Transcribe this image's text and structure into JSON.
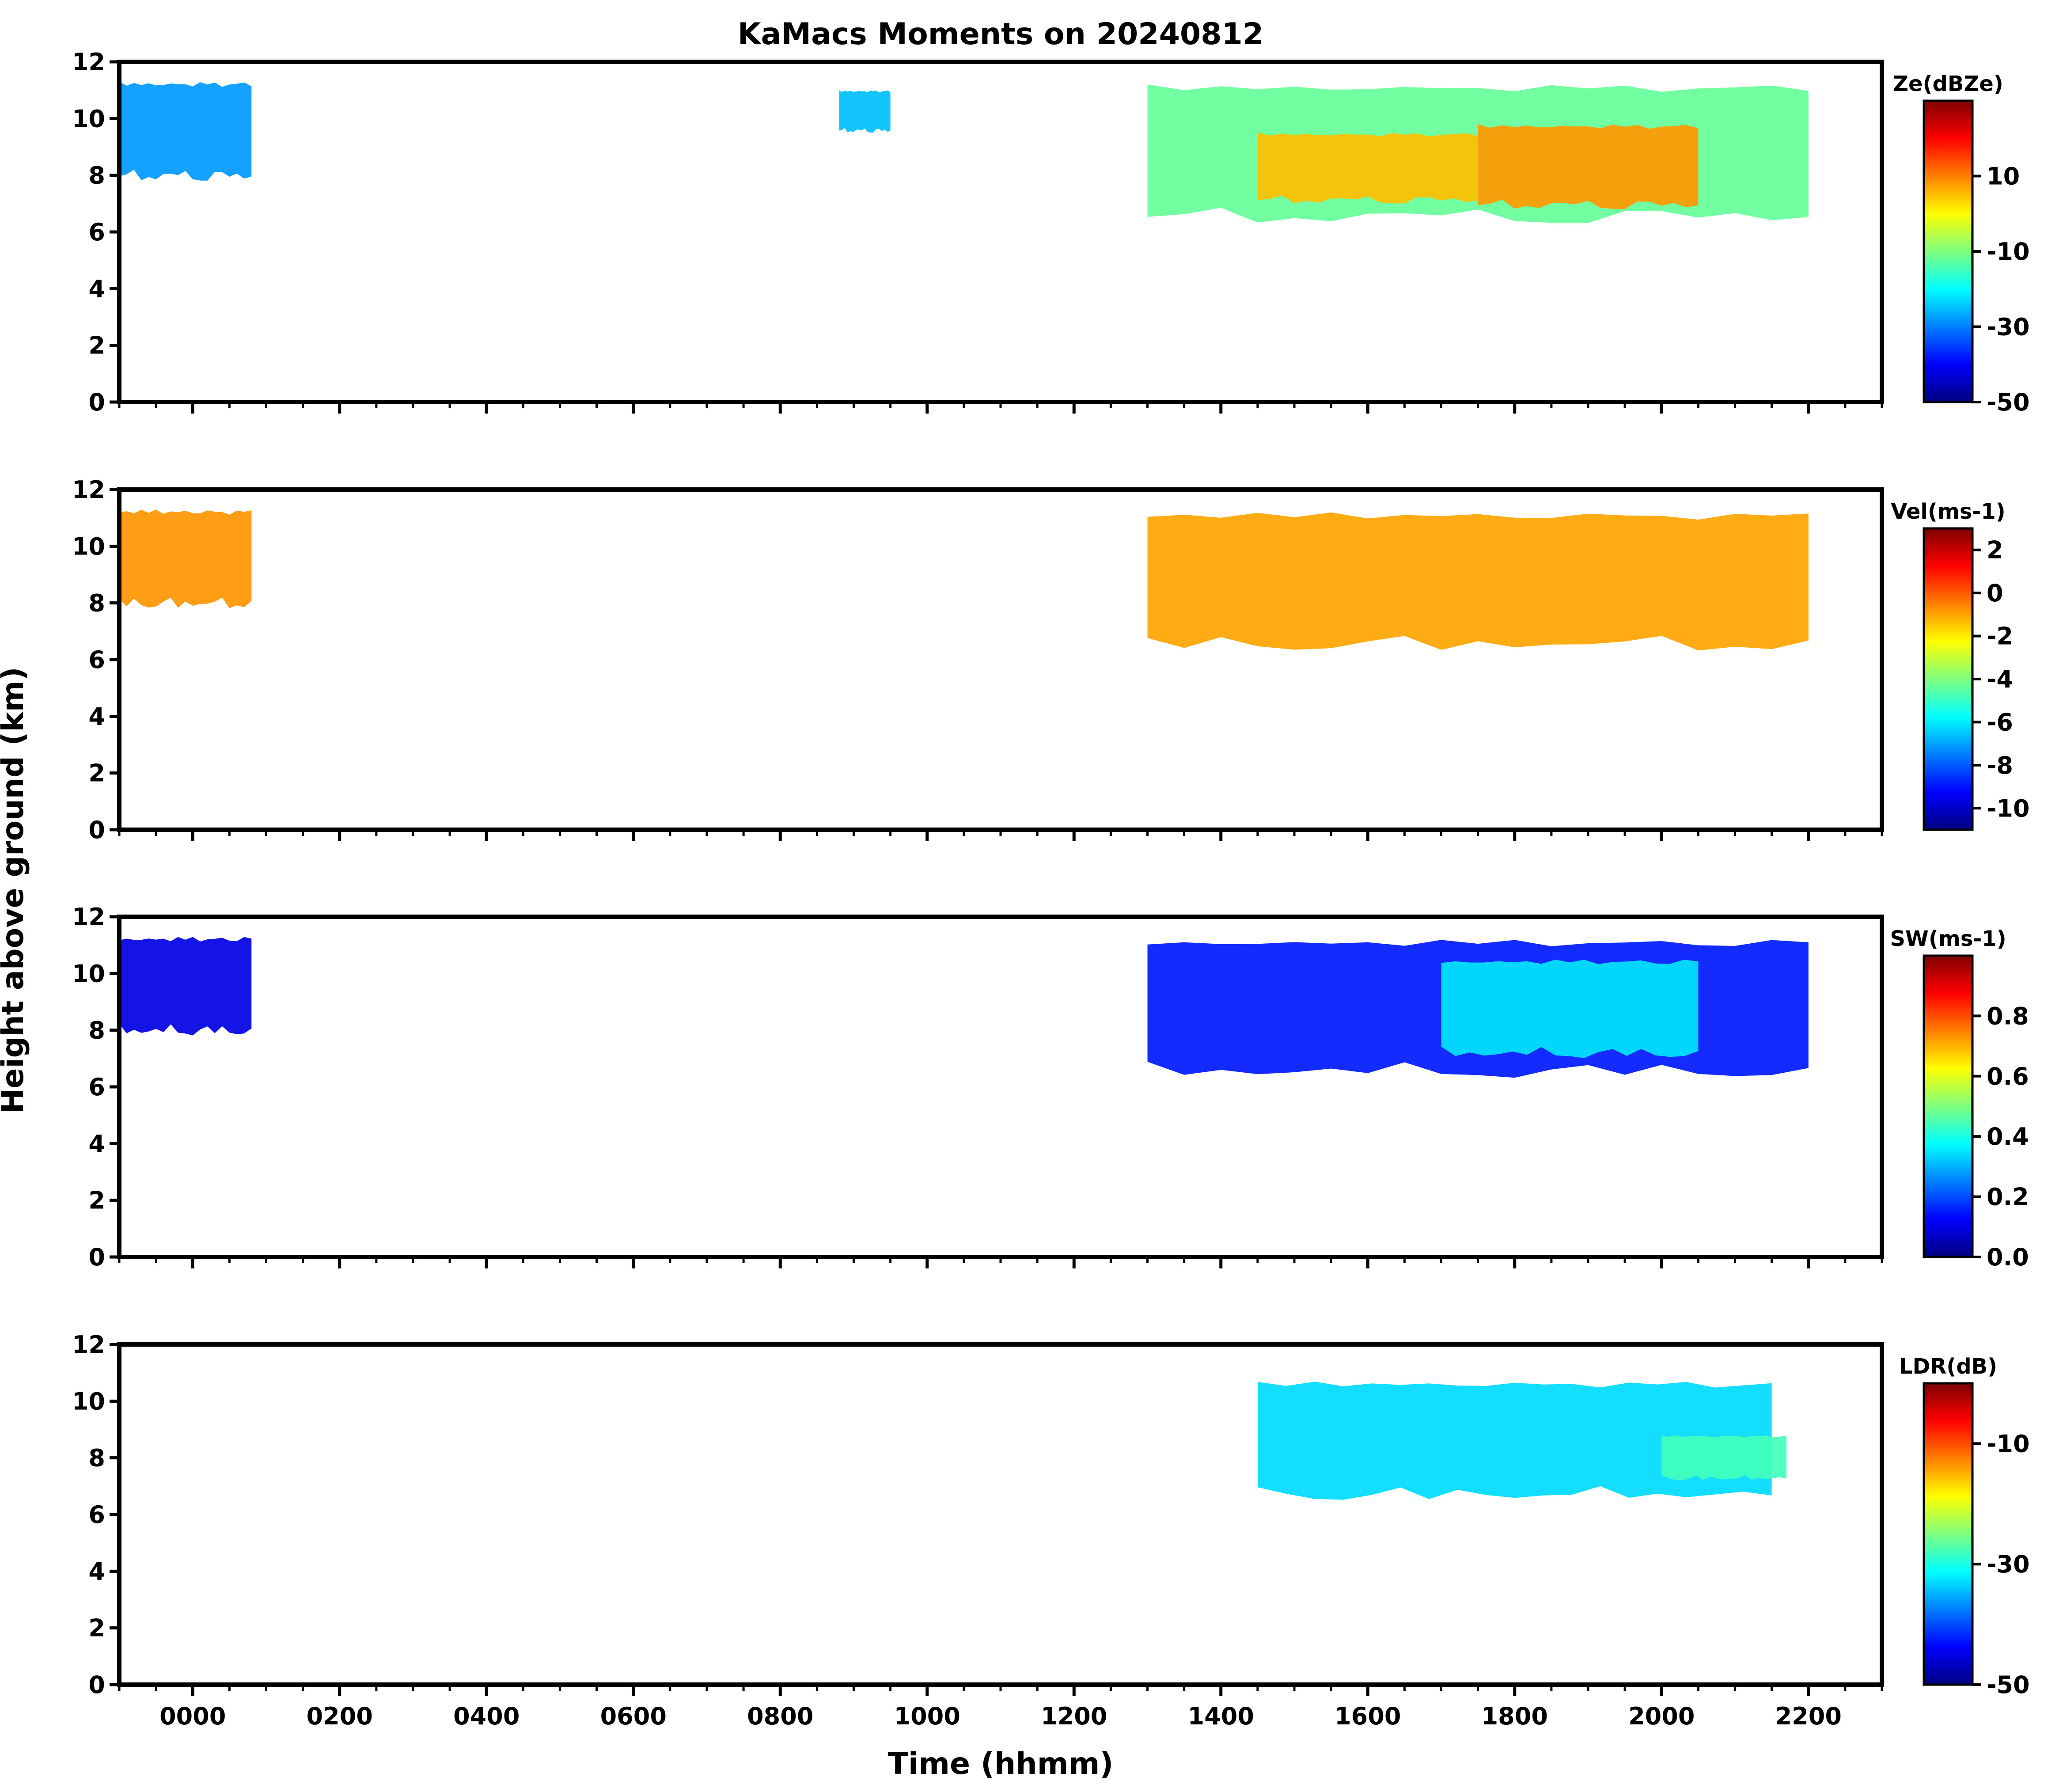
{
  "chart_data": {
    "type": "heatmap",
    "title": "KaMacs Moments on 20240812",
    "xlabel": "Time (hhmm)",
    "ylabel": "Height above ground (km)",
    "xlim": [
      -100,
      2300
    ],
    "x_tick_values": [
      0,
      200,
      400,
      600,
      800,
      1000,
      1200,
      1400,
      1600,
      1800,
      2000,
      2200
    ],
    "x_tick_labels": [
      "0000",
      "0200",
      "0400",
      "0600",
      "0800",
      "1000",
      "1200",
      "1400",
      "1600",
      "1800",
      "2000",
      "2200"
    ],
    "ylim": [
      0,
      12
    ],
    "y_ticks": [
      0,
      2,
      4,
      6,
      8,
      10,
      12
    ],
    "colormap": "jet",
    "colormap_stops": [
      "#00007f",
      "#0000ff",
      "#007fff",
      "#00ffff",
      "#7fff7f",
      "#ffff00",
      "#ff7f00",
      "#ff0000",
      "#7f0000"
    ],
    "panels": [
      {
        "id": "ze",
        "colorbar_label": "Ze(dBZe)",
        "colorbar_range": [
          -50,
          30
        ],
        "colorbar_ticks": [
          -50,
          -30,
          -10,
          10
        ],
        "echoes": [
          {
            "t0": -100,
            "t1": 80,
            "z0": 7.8,
            "z1": 11.3,
            "value": -28
          },
          {
            "t0": 880,
            "t1": 950,
            "z0": 9.5,
            "z1": 11,
            "value": -25
          },
          {
            "t0": 1300,
            "t1": 2200,
            "z0": 6.3,
            "z1": 11.2,
            "value": -12
          },
          {
            "t0": 1450,
            "t1": 1750,
            "z0": 7,
            "z1": 9.5,
            "value": 5
          },
          {
            "t0": 1750,
            "t1": 2050,
            "z0": 6.8,
            "z1": 9.8,
            "value": 8
          }
        ]
      },
      {
        "id": "vel",
        "colorbar_label": "Vel(ms-1)",
        "colorbar_range": [
          -11,
          3
        ],
        "colorbar_ticks": [
          -10,
          -8,
          -6,
          -4,
          -2,
          0,
          2
        ],
        "echoes": [
          {
            "t0": -100,
            "t1": 80,
            "z0": 7.8,
            "z1": 11.3,
            "value": -0.8
          },
          {
            "t0": 1300,
            "t1": 2200,
            "z0": 6.3,
            "z1": 11.2,
            "value": -1
          }
        ]
      },
      {
        "id": "sw",
        "colorbar_label": "SW(ms-1)",
        "colorbar_range": [
          0,
          1
        ],
        "colorbar_ticks": [
          0.0,
          0.2,
          0.4,
          0.6,
          0.8
        ],
        "colorbar_tick_labels": [
          "0.0",
          "0.2",
          "0.4",
          "0.6",
          "0.8"
        ],
        "echoes": [
          {
            "t0": -100,
            "t1": 80,
            "z0": 7.8,
            "z1": 11.3,
            "value": 0.1
          },
          {
            "t0": 1300,
            "t1": 2200,
            "z0": 6.3,
            "z1": 11.2,
            "value": 0.15
          },
          {
            "t0": 1700,
            "t1": 2050,
            "z0": 7,
            "z1": 10.5,
            "value": 0.35
          }
        ]
      },
      {
        "id": "ldr",
        "colorbar_label": "LDR(dB)",
        "colorbar_range": [
          -50,
          0
        ],
        "colorbar_ticks": [
          -50,
          -30,
          -10
        ],
        "echoes": [
          {
            "t0": 1450,
            "t1": 2150,
            "z0": 6.5,
            "z1": 10.7,
            "value": -33
          },
          {
            "t0": 2000,
            "t1": 2170,
            "z0": 7.2,
            "z1": 8.8,
            "value": -28
          }
        ]
      }
    ]
  }
}
